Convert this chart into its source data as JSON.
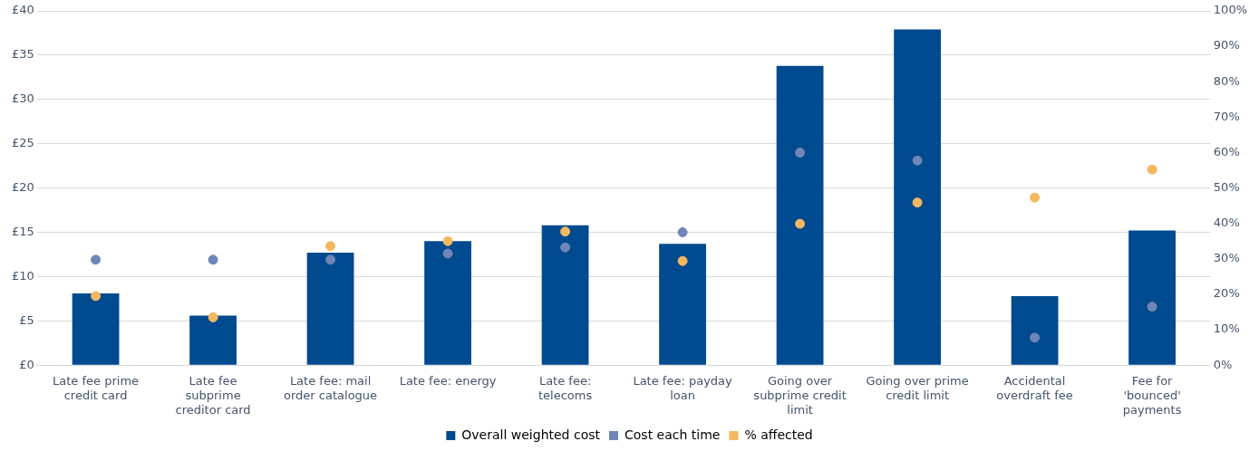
{
  "chart_data": {
    "type": "bar",
    "categories": [
      "Late fee prime credit card",
      "Late fee subprime creditor card",
      "Late fee: mail order catalogue",
      "Late fee: energy",
      "Late fee: telecoms",
      "Late fee: payday loan",
      "Going over subprime credit limit",
      "Going over prime credit limit",
      "Accidental overdraft fee",
      "Fee for 'bounced' payments"
    ],
    "series": [
      {
        "name": "Overall weighted cost",
        "color": "#004a8f",
        "values": [
          8.1,
          5.6,
          12.7,
          14.0,
          15.8,
          13.7,
          33.8,
          37.9,
          7.8,
          15.2
        ]
      },
      {
        "name": "Cost each time",
        "type": "scatter",
        "color": "#6f86b8",
        "x": [
          "Late fee prime credit card",
          "Late fee subprime creditor card",
          "Late fee: mail order catalogue",
          "Late fee: energy",
          "Late fee: telecoms",
          "Late fee: payday loan",
          "Going over subprime credit limit",
          "Going over prime credit limit",
          "Accidental overdraft fee",
          "Fee for 'bounced' payments"
        ],
        "values": [
          11.9,
          11.9,
          11.9,
          12.6,
          13.3,
          15.0,
          24.0,
          23.1,
          3.1,
          6.6
        ]
      },
      {
        "name": "% affected",
        "type": "scatter",
        "axis": "y2",
        "color": "#f4b860",
        "x": [
          "Late fee prime credit card",
          "Late fee subprime creditor card",
          "Late fee: mail order catalogue",
          "Late fee: energy",
          "Late fee: telecoms",
          "Late fee: payday loan",
          "Going over subprime credit limit",
          "Going over prime credit limit",
          "Accidental overdraft fee",
          "Fee for 'bounced' payments"
        ],
        "values": [
          19.5,
          13.5,
          33.6,
          35.0,
          37.7,
          29.4,
          39.9,
          45.9,
          47.3,
          55.2
        ]
      }
    ],
    "ylim": [
      0,
      40
    ],
    "yticks": [
      {
        "value": 0,
        "label": "£0"
      },
      {
        "value": 5,
        "label": "£5"
      },
      {
        "value": 10,
        "label": "£10"
      },
      {
        "value": 15,
        "label": "£15"
      },
      {
        "value": 20,
        "label": "£20"
      },
      {
        "value": 25,
        "label": "£25"
      },
      {
        "value": 30,
        "label": "£30"
      },
      {
        "value": 35,
        "label": "£35"
      },
      {
        "value": 40,
        "label": "£40"
      }
    ],
    "y2lim": [
      0,
      100
    ],
    "y2ticks": [
      {
        "value": 0,
        "label": "0%"
      },
      {
        "value": 10,
        "label": "10%"
      },
      {
        "value": 20,
        "label": "20%"
      },
      {
        "value": 30,
        "label": "30%"
      },
      {
        "value": 40,
        "label": "40%"
      },
      {
        "value": 50,
        "label": "50%"
      },
      {
        "value": 60,
        "label": "60%"
      },
      {
        "value": 70,
        "label": "70%"
      },
      {
        "value": 80,
        "label": "80%"
      },
      {
        "value": 90,
        "label": "90%"
      },
      {
        "value": 100,
        "label": "100%"
      }
    ],
    "grid": "y",
    "legend": "bottom",
    "marker": "circle"
  }
}
